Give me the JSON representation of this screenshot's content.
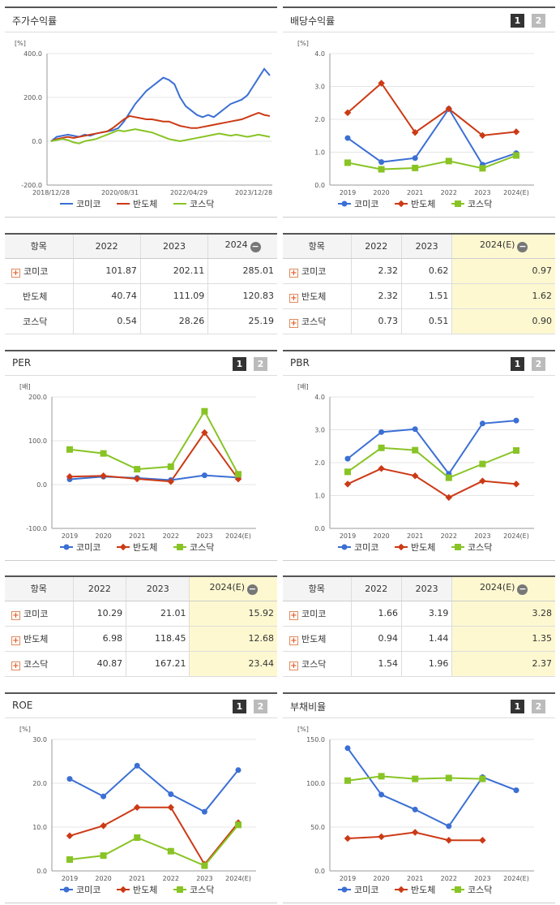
{
  "colors": {
    "komico": "#3b6fd4",
    "semi": "#cc3a15",
    "kosdaq": "#88c425"
  },
  "legend": {
    "komico": "코미코",
    "semi": "반도체",
    "kosdaq": "코스닥"
  },
  "stock": {
    "title": "주가수익률",
    "unit": "[%]",
    "chart_data": {
      "type": "line",
      "title": "주가수익률",
      "ylabel": "[%]",
      "ylim": [
        -200,
        400
      ],
      "yticks": [
        "400.0",
        "200.0",
        "0.0",
        "-200.0"
      ],
      "xticks": [
        "2018/12/28",
        "2020/08/31",
        "2022/04/29",
        "2023/12/28"
      ],
      "x_start": "2018/12/28",
      "x_end": "2024/06",
      "series": [
        {
          "name": "코미코",
          "values": [
            0,
            20,
            25,
            30,
            25,
            20,
            30,
            25,
            35,
            40,
            45,
            50,
            60,
            90,
            130,
            170,
            200,
            230,
            250,
            270,
            290,
            280,
            260,
            200,
            160,
            140,
            120,
            110,
            120,
            110,
            130,
            150,
            170,
            180,
            190,
            210,
            250,
            290,
            330,
            300
          ]
        },
        {
          "name": "반도체",
          "values": [
            0,
            10,
            15,
            20,
            15,
            20,
            25,
            30,
            35,
            40,
            45,
            60,
            80,
            100,
            115,
            110,
            105,
            100,
            100,
            95,
            90,
            90,
            80,
            70,
            65,
            60,
            60,
            65,
            70,
            75,
            80,
            85,
            90,
            95,
            100,
            110,
            120,
            130,
            120,
            115
          ]
        },
        {
          "name": "코스닥",
          "values": [
            0,
            5,
            10,
            5,
            -5,
            -10,
            0,
            5,
            10,
            20,
            30,
            40,
            50,
            45,
            50,
            55,
            50,
            45,
            40,
            30,
            20,
            10,
            5,
            0,
            5,
            10,
            15,
            20,
            25,
            30,
            35,
            30,
            25,
            30,
            25,
            20,
            25,
            30,
            25,
            20
          ]
        }
      ]
    }
  },
  "dividend": {
    "title": "배당수익률",
    "unit": "[%]",
    "btn1": "1",
    "btn2": "2",
    "chart_data": {
      "type": "line",
      "ylim": [
        0,
        4
      ],
      "yticks": [
        "4.0",
        "3.0",
        "2.0",
        "1.0",
        "0.0"
      ],
      "categories": [
        "2019",
        "2020",
        "2021",
        "2022",
        "2023",
        "2024(E)"
      ],
      "series": [
        {
          "name": "코미코",
          "values": [
            1.43,
            0.7,
            0.82,
            2.32,
            0.62,
            0.97
          ]
        },
        {
          "name": "반도체",
          "values": [
            2.2,
            3.1,
            1.6,
            2.32,
            1.51,
            1.62
          ]
        },
        {
          "name": "코스닥",
          "values": [
            0.68,
            0.48,
            0.52,
            0.73,
            0.51,
            0.9
          ]
        }
      ]
    }
  },
  "stock_table": {
    "headers": [
      "항목",
      "2022",
      "2023",
      "2024"
    ],
    "rows": [
      [
        "코미코",
        "101.87",
        "202.11",
        "285.01"
      ],
      [
        "반도체",
        "40.74",
        "111.09",
        "120.83"
      ],
      [
        "코스닥",
        "0.54",
        "28.26",
        "25.19"
      ]
    ]
  },
  "dividend_table": {
    "headers": [
      "항목",
      "2022",
      "2023",
      "2024(E)"
    ],
    "rows": [
      [
        "코미코",
        "2.32",
        "0.62",
        "0.97"
      ],
      [
        "반도체",
        "2.32",
        "1.51",
        "1.62"
      ],
      [
        "코스닥",
        "0.73",
        "0.51",
        "0.90"
      ]
    ]
  },
  "per": {
    "title": "PER",
    "unit": "[배]",
    "btn1": "1",
    "btn2": "2",
    "chart_data": {
      "type": "line",
      "ylim": [
        -100,
        200
      ],
      "yticks": [
        "200.0",
        "100.0",
        "0.0",
        "-100.0"
      ],
      "categories": [
        "2019",
        "2020",
        "2021",
        "2022",
        "2023",
        "2024(E)"
      ],
      "series": [
        {
          "name": "코미코",
          "values": [
            12,
            18,
            15,
            10.29,
            21.01,
            15.92
          ]
        },
        {
          "name": "반도체",
          "values": [
            18,
            20,
            13,
            6.98,
            118.45,
            12.68
          ]
        },
        {
          "name": "코스닥",
          "values": [
            80,
            71,
            35,
            40.87,
            167.21,
            23.44
          ]
        }
      ]
    }
  },
  "pbr": {
    "title": "PBR",
    "unit": "[배]",
    "btn1": "1",
    "btn2": "2",
    "chart_data": {
      "type": "line",
      "ylim": [
        0,
        4
      ],
      "yticks": [
        "4.0",
        "3.0",
        "2.0",
        "1.0",
        "0.0"
      ],
      "categories": [
        "2019",
        "2020",
        "2021",
        "2022",
        "2023",
        "2024(E)"
      ],
      "series": [
        {
          "name": "코미코",
          "values": [
            2.12,
            2.93,
            3.02,
            1.66,
            3.19,
            3.28
          ]
        },
        {
          "name": "반도체",
          "values": [
            1.35,
            1.82,
            1.6,
            0.94,
            1.44,
            1.35
          ]
        },
        {
          "name": "코스닥",
          "values": [
            1.72,
            2.45,
            2.38,
            1.54,
            1.96,
            2.37
          ]
        }
      ]
    }
  },
  "per_table": {
    "headers": [
      "항목",
      "2022",
      "2023",
      "2024(E)"
    ],
    "rows": [
      [
        "코미코",
        "10.29",
        "21.01",
        "15.92"
      ],
      [
        "반도체",
        "6.98",
        "118.45",
        "12.68"
      ],
      [
        "코스닥",
        "40.87",
        "167.21",
        "23.44"
      ]
    ]
  },
  "pbr_table": {
    "headers": [
      "항목",
      "2022",
      "2023",
      "2024(E)"
    ],
    "rows": [
      [
        "코미코",
        "1.66",
        "3.19",
        "3.28"
      ],
      [
        "반도체",
        "0.94",
        "1.44",
        "1.35"
      ],
      [
        "코스닥",
        "1.54",
        "1.96",
        "2.37"
      ]
    ]
  },
  "roe": {
    "title": "ROE",
    "unit": "[%]",
    "btn1": "1",
    "btn2": "2",
    "chart_data": {
      "type": "line",
      "ylim": [
        0,
        30
      ],
      "yticks": [
        "30.0",
        "20.0",
        "10.0",
        "0.0"
      ],
      "categories": [
        "2019",
        "2020",
        "2021",
        "2022",
        "2023",
        "2024(E)"
      ],
      "series": [
        {
          "name": "코미코",
          "values": [
            21,
            17,
            24,
            17.5,
            13.5,
            23
          ]
        },
        {
          "name": "반도체",
          "values": [
            8,
            10.3,
            14.5,
            14.5,
            1.5,
            11
          ]
        },
        {
          "name": "코스닥",
          "values": [
            2.6,
            3.5,
            7.6,
            4.5,
            1.2,
            10.5
          ]
        }
      ]
    }
  },
  "debt": {
    "title": "부채비율",
    "unit": "[%]",
    "btn1": "1",
    "btn2": "2",
    "chart_data": {
      "type": "line",
      "ylim": [
        0,
        150
      ],
      "yticks": [
        "150.0",
        "100.0",
        "50.0",
        "0.0"
      ],
      "categories": [
        "2019",
        "2020",
        "2021",
        "2022",
        "2023",
        "2024(E)"
      ],
      "series": [
        {
          "name": "코미코",
          "values": [
            140,
            87,
            70,
            51,
            107,
            92
          ]
        },
        {
          "name": "반도체",
          "values": [
            37,
            39,
            44,
            35,
            35,
            null
          ]
        },
        {
          "name": "코스닥",
          "values": [
            103,
            108,
            105,
            106,
            105,
            null
          ]
        }
      ]
    }
  }
}
